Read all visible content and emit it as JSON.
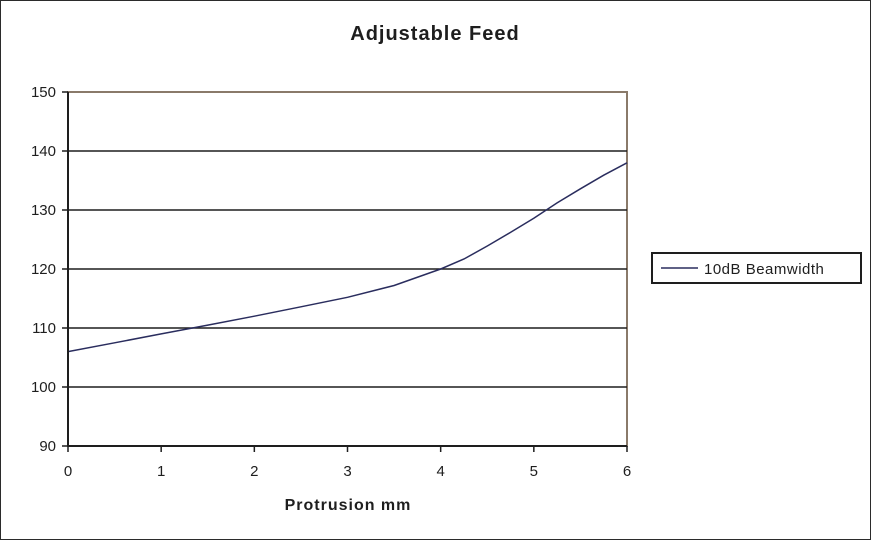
{
  "chart_data": {
    "type": "line",
    "title": "Adjustable Feed",
    "xlabel": "Protrusion mm",
    "ylabel": "",
    "xlim": [
      0,
      6
    ],
    "ylim": [
      90,
      150
    ],
    "x_ticks": [
      "0",
      "1",
      "2",
      "3",
      "4",
      "5",
      "6"
    ],
    "y_ticks": [
      "90",
      "100",
      "110",
      "120",
      "130",
      "140",
      "150"
    ],
    "grid": "horizontal",
    "legend_position": "right",
    "series": [
      {
        "name": "10dB Beamwidth",
        "color": "#2a2d5e",
        "x": [
          0,
          0.5,
          1,
          1.5,
          2,
          2.5,
          3,
          3.5,
          4,
          4.25,
          4.5,
          4.75,
          5,
          5.25,
          5.5,
          5.75,
          6
        ],
        "y": [
          106,
          107.5,
          109,
          110.5,
          112,
          113.6,
          115.2,
          117.2,
          120,
          121.7,
          123.9,
          126.2,
          128.6,
          131.2,
          133.6,
          135.9,
          138
        ]
      }
    ]
  }
}
